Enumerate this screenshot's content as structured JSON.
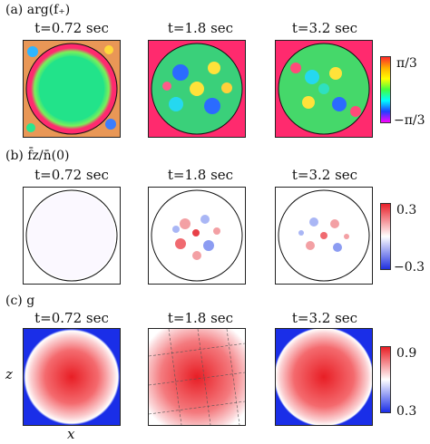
{
  "rows": [
    {
      "label": "(a) arg(f₊)",
      "titles": [
        "t=0.72 sec",
        "t=1.8 sec",
        "t=3.2 sec"
      ],
      "colorbar": {
        "top": "π/3",
        "bottom": "−π/3"
      }
    },
    {
      "label": "(b) f̄z/n̄(0)",
      "titles": [
        "t=0.72 sec",
        "t=1.8 sec",
        "t=3.2 sec"
      ],
      "colorbar": {
        "top": "0.3",
        "bottom": "−0.3"
      }
    },
    {
      "label": "(c) g",
      "titles": [
        "t=0.72 sec",
        "t=1.8 sec",
        "t=3.2 sec"
      ],
      "colorbar": {
        "top": "0.9",
        "bottom": "0.3"
      }
    }
  ],
  "axes": {
    "x": "x",
    "z": "z"
  },
  "colors": {
    "phase_ring": "#ff2a6e",
    "phase_core": "#22e38a",
    "diverging_pos": "#e8202a",
    "diverging_neg": "#2030e0",
    "density_peak": "#e81e25",
    "density_edge": "#1a2ee8"
  }
}
